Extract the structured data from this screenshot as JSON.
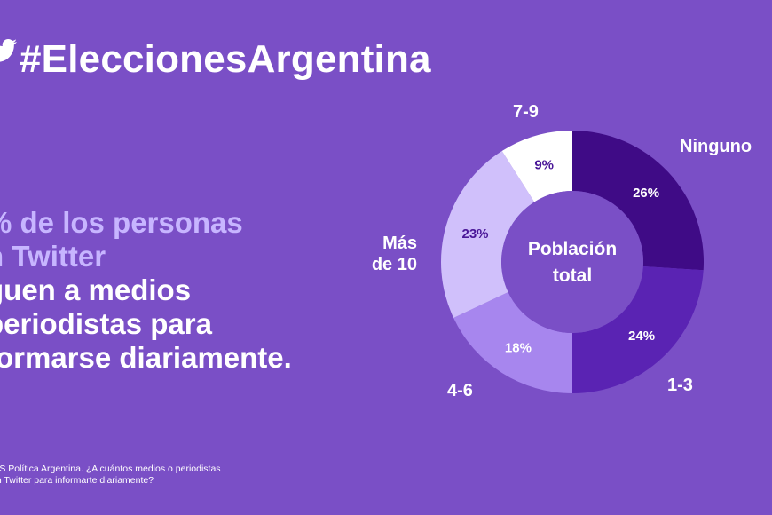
{
  "header": {
    "hashtag": "#EleccionesArgentina"
  },
  "headline": {
    "line1": "% de los personas",
    "line2": "n Twitter",
    "line3": "guen a medios",
    "line4": "periodistas para",
    "line5": "formarse diariamente."
  },
  "source": {
    "line1": "TIS Política Argentina. ¿A cuántos medios o periodistas",
    "line2": "en Twitter para informarte diariamente?"
  },
  "colors": {
    "background": "#7a4fc6",
    "headline_soft": "#c7b5ff"
  },
  "chart_data": {
    "type": "pie",
    "subtype": "donut",
    "title": "Población total",
    "center_label": [
      "Población",
      "total"
    ],
    "categories": [
      "Ninguno",
      "1-3",
      "4-6",
      "Más de 10",
      "7-9"
    ],
    "values": [
      26,
      24,
      18,
      23,
      9
    ],
    "value_labels": [
      "26%",
      "24%",
      "18%",
      "23%",
      "9%"
    ],
    "label_lines": [
      [
        "Ninguno"
      ],
      [
        "1-3"
      ],
      [
        "4-6"
      ],
      [
        "Más",
        "de 10"
      ],
      [
        "7-9"
      ]
    ],
    "slice_colors": [
      "#3f0b86",
      "#5a23b3",
      "#a786ee",
      "#d0c0fb",
      "#ffffff"
    ],
    "value_text_colors": [
      "#ffffff",
      "#ffffff",
      "#ffffff",
      "#4a1798",
      "#4a1798"
    ]
  }
}
